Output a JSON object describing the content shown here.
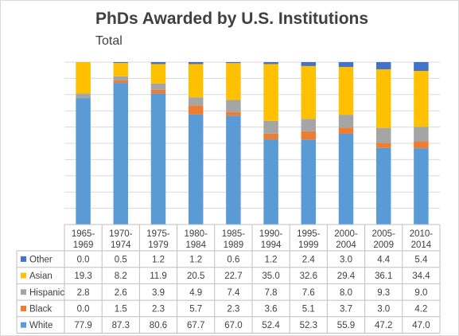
{
  "chart_data": {
    "type": "bar",
    "stacked": true,
    "percent_stacked": true,
    "title": "PhDs Awarded by U.S. Institutions",
    "subtitle": "Total",
    "categories": [
      [
        "1965-",
        "1969"
      ],
      [
        "1970-",
        "1974"
      ],
      [
        "1975-",
        "1979"
      ],
      [
        "1980-",
        "1984"
      ],
      [
        "1985-",
        "1989"
      ],
      [
        "1990-",
        "1994"
      ],
      [
        "1995-",
        "1999"
      ],
      [
        "2000-",
        "2004"
      ],
      [
        "2005-",
        "2009"
      ],
      [
        "2010-",
        "2014"
      ]
    ],
    "series": [
      {
        "name": "White",
        "color": "#5B9BD5",
        "values": [
          "77.9",
          "87.3",
          "80.6",
          "67.7",
          "67.0",
          "52.4",
          "52.3",
          "55.9",
          "47.2",
          "47.0"
        ]
      },
      {
        "name": "Black",
        "color": "#ED7D31",
        "values": [
          "0.0",
          "1.5",
          "2.3",
          "5.7",
          "2.3",
          "3.6",
          "5.1",
          "3.7",
          "3.0",
          "4.2"
        ]
      },
      {
        "name": "Hispanic",
        "color": "#A5A5A5",
        "values": [
          "2.8",
          "2.6",
          "3.9",
          "4.9",
          "7.4",
          "7.8",
          "7.6",
          "8.0",
          "9.3",
          "9.0"
        ]
      },
      {
        "name": "Asian",
        "color": "#FFC000",
        "values": [
          "19.3",
          "8.2",
          "11.9",
          "20.5",
          "22.7",
          "35.0",
          "32.6",
          "29.4",
          "36.1",
          "34.4"
        ]
      },
      {
        "name": "Other",
        "color": "#4472C4",
        "values": [
          "0.0",
          "0.5",
          "1.2",
          "1.2",
          "0.6",
          "1.2",
          "2.4",
          "3.0",
          "4.4",
          "5.4"
        ]
      }
    ],
    "table_row_order": [
      "Other",
      "Asian",
      "Hispanic",
      "Black",
      "White"
    ],
    "ylim": [
      0,
      100
    ],
    "grid": true,
    "legend": "data-table",
    "xlabel": "",
    "ylabel": ""
  }
}
